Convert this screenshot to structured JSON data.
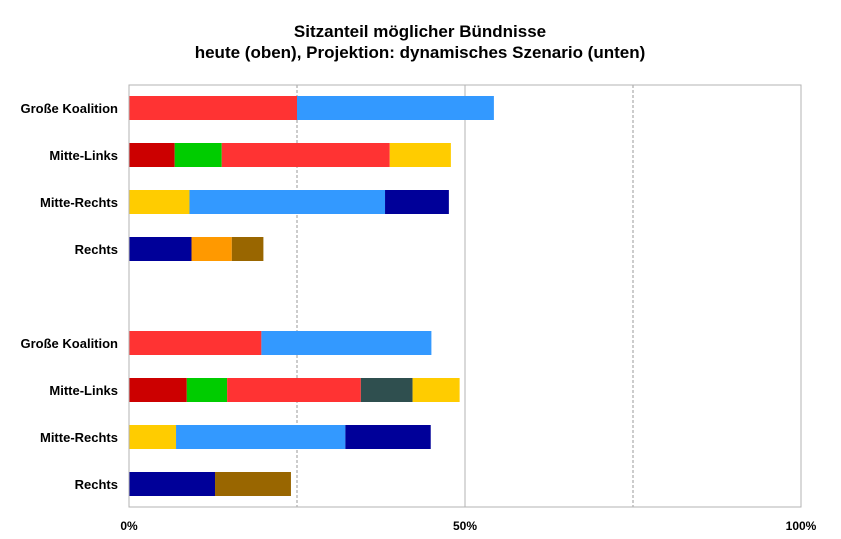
{
  "chart_data": {
    "type": "bar",
    "orientation": "horizontal",
    "stacked": true,
    "title_lines": [
      "Sitzanteil möglicher Bündnisse",
      "heute (oben), Projektion: dynamisches Szenario (unten)"
    ],
    "x_ticks": [
      {
        "value": 0,
        "label": "0%"
      },
      {
        "value": 50,
        "label": "50%"
      },
      {
        "value": 100,
        "label": "100%"
      }
    ],
    "xlim": [
      0,
      100
    ],
    "gridlines": [
      25,
      50,
      75,
      100
    ],
    "grid": true,
    "legend": "none",
    "groups": [
      {
        "rows": [
          {
            "label": "Große Koalition",
            "segments": [
              {
                "value": 25,
                "color": "#ff3333"
              },
              {
                "value": 29.3,
                "color": "#3399ff"
              }
            ]
          },
          {
            "label": "Mitte-Links",
            "segments": [
              {
                "value": 6.8,
                "color": "#cc0000"
              },
              {
                "value": 7.0,
                "color": "#00cc00"
              },
              {
                "value": 25.0,
                "color": "#ff3333"
              },
              {
                "value": 9.1,
                "color": "#ffcc00"
              }
            ]
          },
          {
            "label": "Mitte-Rechts",
            "segments": [
              {
                "value": 9.0,
                "color": "#ffcc00"
              },
              {
                "value": 29.1,
                "color": "#3399ff"
              },
              {
                "value": 9.5,
                "color": "#000099"
              }
            ]
          },
          {
            "label": "Rechts",
            "segments": [
              {
                "value": 9.3,
                "color": "#000099"
              },
              {
                "value": 6.0,
                "color": "#ff9900"
              },
              {
                "value": 4.7,
                "color": "#996600"
              }
            ]
          }
        ]
      },
      {
        "rows": [
          {
            "label": "Große Koalition",
            "segments": [
              {
                "value": 19.7,
                "color": "#ff3333"
              },
              {
                "value": 25.3,
                "color": "#3399ff"
              }
            ]
          },
          {
            "label": "Mitte-Links",
            "segments": [
              {
                "value": 8.6,
                "color": "#cc0000"
              },
              {
                "value": 6.0,
                "color": "#00cc00"
              },
              {
                "value": 19.9,
                "color": "#ff3333"
              },
              {
                "value": 7.7,
                "color": "#2f4f4f"
              },
              {
                "value": 7.0,
                "color": "#ffcc00"
              }
            ]
          },
          {
            "label": "Mitte-Rechts",
            "segments": [
              {
                "value": 7.0,
                "color": "#ffcc00"
              },
              {
                "value": 25.2,
                "color": "#3399ff"
              },
              {
                "value": 12.7,
                "color": "#000099"
              }
            ]
          },
          {
            "label": "Rechts",
            "segments": [
              {
                "value": 12.8,
                "color": "#000099"
              },
              {
                "value": 11.3,
                "color": "#996600"
              }
            ]
          }
        ]
      }
    ]
  }
}
